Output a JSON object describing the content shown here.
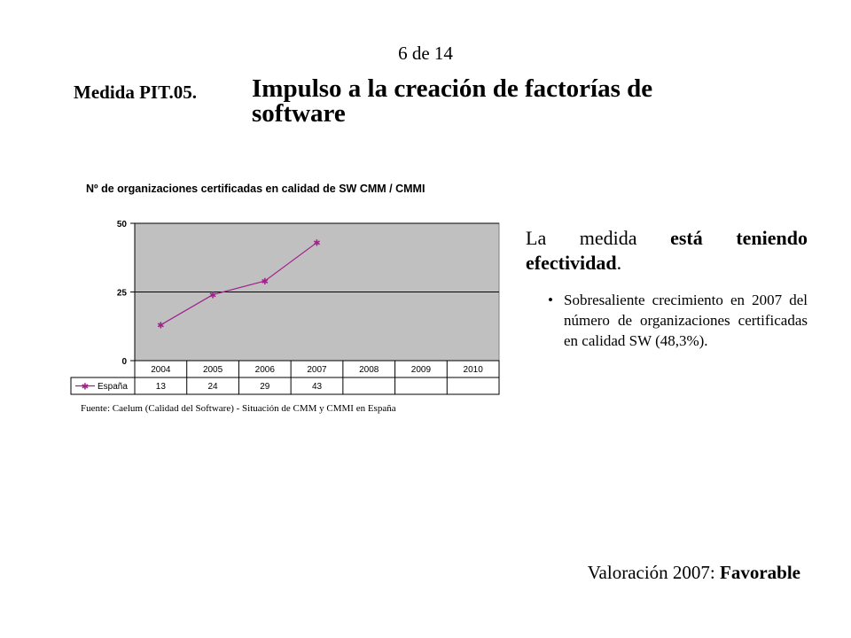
{
  "slide": {
    "page_number": "6 de 14",
    "measure_code": "Medida PIT.05.",
    "title": "Impulso a la creación de factorías de software"
  },
  "chart_data": {
    "type": "line",
    "title": "Nº de organizaciones certificadas en calidad de SW CMM / CMMI",
    "categories": [
      "2004",
      "2005",
      "2006",
      "2007",
      "2008",
      "2009",
      "2010"
    ],
    "series": [
      {
        "name": "España",
        "values": [
          13,
          24,
          29,
          43,
          null,
          null,
          null
        ]
      }
    ],
    "table_values": [
      "13",
      "24",
      "29",
      "43",
      "",
      "",
      ""
    ],
    "ylim": [
      0,
      50
    ],
    "yticks": [
      "0",
      "25",
      "50"
    ],
    "grid": true,
    "legend_placement": "data-table",
    "plot_background": "#c0c0c0",
    "line_color": "#a0208c",
    "source": "Fuente: Caelum (Calidad del Software) - Situación de CMM y CMMI en España"
  },
  "content": {
    "statement_prefix": "La medida ",
    "statement_bold": "está teniendo efectividad",
    "statement_suffix": ".",
    "bullets": [
      "Sobresaliente crecimiento en 2007 del número de organizaciones certificadas en calidad SW (48,3%)."
    ],
    "assessment_label": "Valoración 2007: ",
    "assessment_value": "Favorable"
  }
}
